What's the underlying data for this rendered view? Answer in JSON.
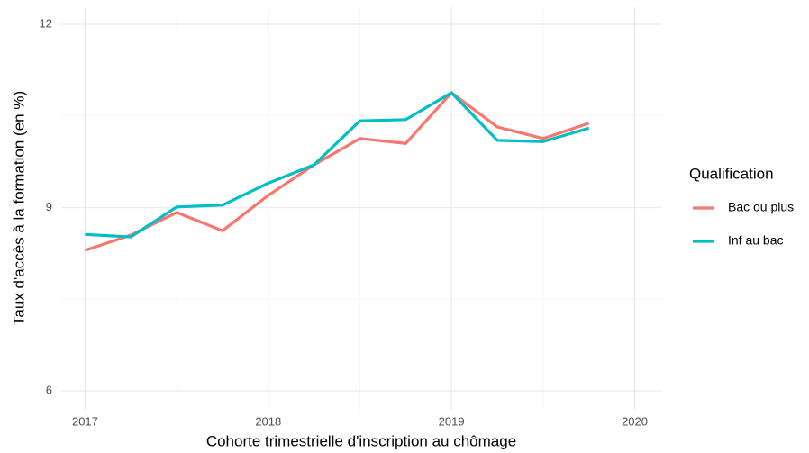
{
  "chart_data": {
    "type": "line",
    "x_label": "Cohorte trimestrielle d'inscription au chômage",
    "y_label": "Taux d'accès à la formation (en %)",
    "legend_title": "Qualification",
    "legend_position": "right",
    "grid": true,
    "x": [
      2017,
      2017.25,
      2017.5,
      2017.75,
      2018,
      2018.25,
      2018.5,
      2018.75,
      2019,
      2019.25,
      2019.5,
      2019.75
    ],
    "series": [
      {
        "name": "Bac ou plus",
        "color": "#f8766d",
        "values": [
          8.3,
          8.55,
          8.92,
          8.62,
          9.2,
          9.7,
          10.13,
          10.05,
          10.88,
          10.32,
          10.13,
          10.38
        ]
      },
      {
        "name": "Inf au bac",
        "color": "#00bfc4",
        "values": [
          8.56,
          8.52,
          9.01,
          9.04,
          9.4,
          9.7,
          10.42,
          10.44,
          10.88,
          10.1,
          10.08,
          10.3
        ]
      }
    ],
    "xlim": [
      2016.87,
      2020.15
    ],
    "xticks": [
      2017,
      2018,
      2019,
      2020
    ],
    "ylim": [
      5.69,
      12.28
    ],
    "yticks": [
      6,
      9,
      12
    ]
  }
}
